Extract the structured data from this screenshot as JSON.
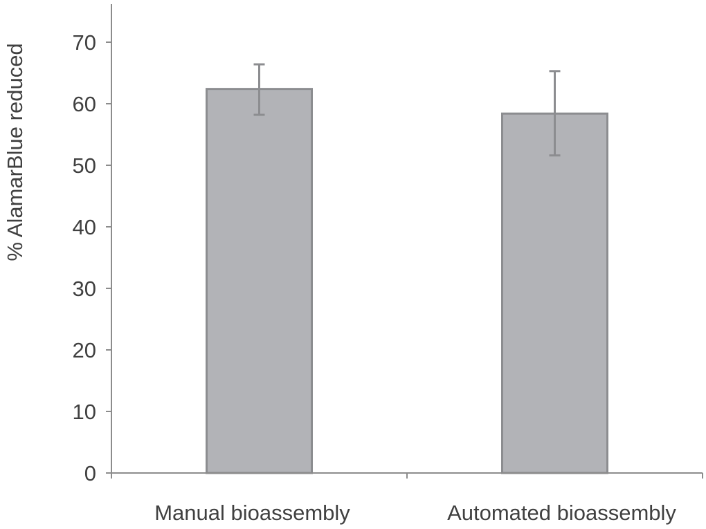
{
  "chart_data": {
    "type": "bar",
    "title": "",
    "xlabel": "",
    "ylabel": "% AlamarBlue reduced",
    "ylim": [
      0,
      70
    ],
    "yticks": [
      0,
      10,
      20,
      30,
      40,
      50,
      60,
      70
    ],
    "categories": [
      "Manual bioassembly",
      "Automated bioassembly"
    ],
    "values": [
      62.4,
      58.4
    ],
    "error_upper": [
      66.4,
      65.3
    ],
    "error_lower": [
      58.2,
      51.6
    ],
    "grid": false,
    "legend": "none",
    "colors": {
      "bar_fill": "#b2b3b7",
      "bar_stroke": "#8c8d90",
      "axis": "#8c8c8c",
      "error_bar": "#8c8d90"
    }
  }
}
